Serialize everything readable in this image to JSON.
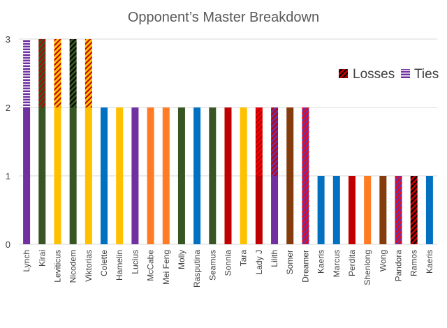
{
  "chart_data": {
    "type": "bar",
    "stacked": true,
    "title": "Opponent’s Master Breakdown",
    "xlabel": "",
    "ylabel": "",
    "ylim": [
      0,
      3
    ],
    "yticks": [
      "0",
      "1",
      "2",
      "3"
    ],
    "grid": "horizontal",
    "legend_position": "right",
    "legend": [
      {
        "name": "Losses",
        "pattern": "diagonal",
        "fg": "#000000",
        "bg": "#c00000"
      },
      {
        "name": "Ties",
        "pattern": "horizontal",
        "fg": "#ffffff",
        "bg": "#7030a0"
      }
    ],
    "categories": [
      "Lynch",
      "Kirai",
      "Leviticus",
      "Nicodem",
      "Viktorias",
      "Colette",
      "Hamelin",
      "Lucius",
      "McCabe",
      "Mei Feng",
      "Molly",
      "Rasputina",
      "Seamus",
      "Sonnia",
      "Tara",
      "Lady J",
      "Lilith",
      "Somer",
      "Dreamer",
      "Kaeris",
      "Marcus",
      "Perdita",
      "Shenlong",
      "Wong",
      "Pandora",
      "Ramos",
      "Kaeris"
    ],
    "colors": [
      "#7030a0",
      "#375623",
      "#ffc000",
      "#375623",
      "#ffc000",
      "#0070c0",
      "#ffc000",
      "#7030a0",
      "#ff7c24",
      "#ff7c24",
      "#375623",
      "#0070c0",
      "#375623",
      "#c00000",
      "#ffc000",
      "#c00000",
      "#7030a0",
      "#843c0c",
      "#7030a0",
      "#0070c0",
      "#0070c0",
      "#c00000",
      "#ff7c24",
      "#843c0c",
      "#7030a0",
      "#c00000",
      "#0070c0"
    ],
    "series": [
      {
        "name": "",
        "values": [
          2,
          2,
          2,
          2,
          2,
          2,
          2,
          2,
          1,
          2,
          2,
          2,
          2,
          2,
          2,
          1,
          1,
          2,
          0,
          1,
          1,
          1,
          1,
          1,
          0,
          0,
          1
        ]
      },
      {
        "name": "Losses",
        "values": [
          0,
          1,
          1,
          1,
          1,
          0,
          0,
          0,
          1,
          0,
          0,
          0,
          0,
          0,
          0,
          1,
          1,
          0,
          2,
          0,
          0,
          0,
          0,
          0,
          1,
          1,
          0
        ]
      },
      {
        "name": "Ties",
        "values": [
          1,
          0,
          0,
          0,
          0,
          0,
          0,
          0,
          0,
          0,
          0,
          0,
          0,
          0,
          0,
          0,
          0,
          0,
          0,
          0,
          0,
          0,
          0,
          0,
          0,
          0,
          0
        ]
      }
    ],
    "loss_overlay": [
      "#ffc000",
      "#c00000",
      "#c00000",
      "#000000",
      "#c00000",
      "",
      "",
      "",
      "#ff7c24",
      "",
      "",
      "",
      "",
      "",
      "",
      "#ff0000",
      "#c00000",
      "",
      "#ff0000",
      "",
      "",
      "",
      "",
      "",
      "#ff0000",
      "#000000",
      ""
    ]
  }
}
